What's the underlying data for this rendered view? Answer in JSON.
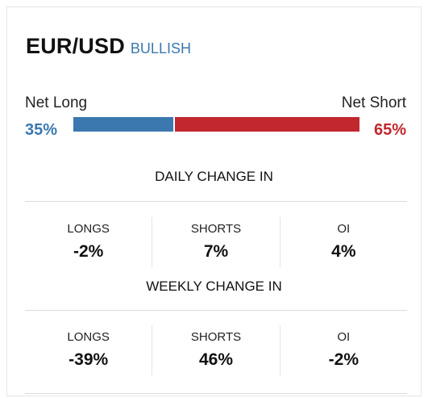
{
  "header": {
    "pair": "EUR/USD",
    "bias": "BULLISH"
  },
  "sentiment": {
    "long_label": "Net Long",
    "short_label": "Net Short",
    "long_pct_text": "35%",
    "short_pct_text": "65%",
    "long_fraction": 0.35,
    "short_fraction": 0.65
  },
  "daily": {
    "title": "DAILY CHANGE IN",
    "stats": [
      {
        "label": "LONGS",
        "value": "-2%"
      },
      {
        "label": "SHORTS",
        "value": "7%"
      },
      {
        "label": "OI",
        "value": "4%"
      }
    ]
  },
  "weekly": {
    "title": "WEEKLY CHANGE IN",
    "stats": [
      {
        "label": "LONGS",
        "value": "-39%"
      },
      {
        "label": "SHORTS",
        "value": "46%"
      },
      {
        "label": "OI",
        "value": "-2%"
      }
    ]
  },
  "colors": {
    "long": "#3b78b0",
    "short": "#c1272d",
    "bias": "#3b78b0"
  }
}
